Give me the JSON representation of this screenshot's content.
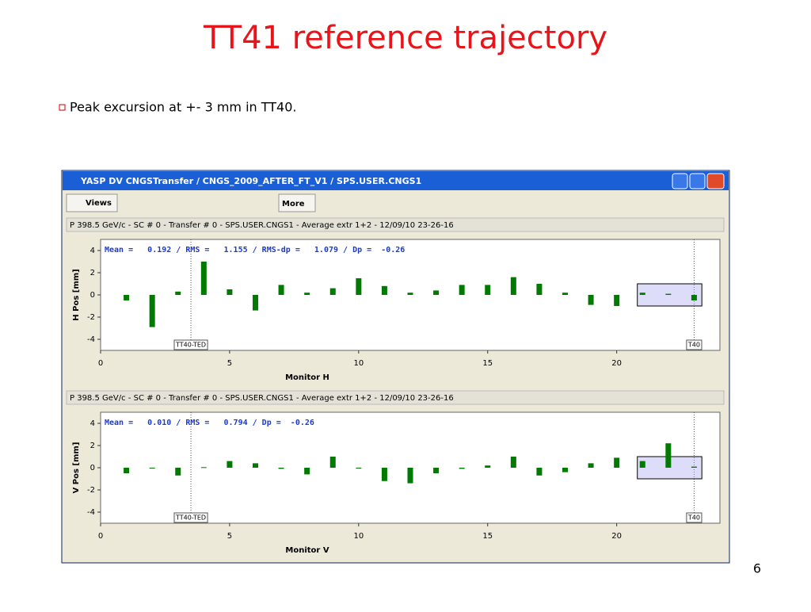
{
  "slide": {
    "title": "TT41 reference trajectory",
    "bullet": "Peak excursion at +- 3 mm in TT40.",
    "page_number": "6"
  },
  "window": {
    "title": "YASP DV CNGSTransfer / CNGS_2009_AFTER_FT_V1 / SPS.USER.CNGS1",
    "toolbar": [
      "Views",
      "More"
    ]
  },
  "chart_data": [
    {
      "type": "bar",
      "subtitle": "P 398.5 GeV/c - SC # 0 - Transfer # 0 - SPS.USER.CNGS1 -  Average extr 1+2 - 12/09/10 23-26-16",
      "annotation": "Mean =   0.192 / RMS =   1.155 / RMS-dp =   1.079 / Dp =  -0.26",
      "x_label": "Monitor H",
      "y_label": "H Pos [mm]",
      "x": [
        1,
        2,
        3,
        4,
        5,
        6,
        7,
        8,
        9,
        10,
        11,
        12,
        13,
        14,
        15,
        16,
        17,
        18,
        19,
        20,
        21,
        22,
        23
      ],
      "values": [
        -0.5,
        -2.9,
        0.3,
        3.0,
        0.5,
        -1.4,
        0.9,
        0.2,
        0.6,
        1.5,
        0.8,
        0.2,
        0.4,
        0.9,
        0.9,
        1.6,
        1.0,
        0.2,
        -0.9,
        -1.0,
        0.2,
        0.1,
        -0.5
      ],
      "color": "#007a00",
      "xlim": [
        0,
        24
      ],
      "ylim": [
        -5,
        5
      ],
      "xticks": [
        0,
        5,
        10,
        15,
        20
      ],
      "yticks": [
        -4,
        -2,
        0,
        2,
        4
      ],
      "markers": [
        {
          "x": 3.5,
          "label": "TT40-TED"
        },
        {
          "x": 23,
          "label": "T40"
        }
      ],
      "selection": {
        "xlim": [
          20.8,
          23.3
        ],
        "ylim": [
          -1,
          1
        ]
      }
    },
    {
      "type": "bar",
      "subtitle": "P 398.5 GeV/c - SC # 0 - Transfer # 0 - SPS.USER.CNGS1 -  Average extr 1+2 - 12/09/10 23-26-16",
      "annotation": "Mean =   0.010 / RMS =   0.794 / Dp =  -0.26",
      "x_label": "Monitor V",
      "y_label": "V Pos [mm]",
      "x": [
        1,
        2,
        3,
        4,
        5,
        6,
        7,
        8,
        9,
        10,
        11,
        12,
        13,
        14,
        15,
        16,
        17,
        18,
        19,
        20,
        21,
        22,
        23
      ],
      "values": [
        -0.5,
        -0.05,
        -0.7,
        0.05,
        0.6,
        0.4,
        -0.1,
        -0.6,
        1.0,
        -0.05,
        -1.2,
        -1.4,
        -0.5,
        -0.1,
        0.2,
        1.0,
        -0.7,
        -0.4,
        0.4,
        0.9,
        0.6,
        2.2,
        0.1
      ],
      "color": "#007a00",
      "xlim": [
        0,
        24
      ],
      "ylim": [
        -5,
        5
      ],
      "xticks": [
        0,
        5,
        10,
        15,
        20
      ],
      "yticks": [
        -4,
        -2,
        0,
        2,
        4
      ],
      "markers": [
        {
          "x": 3.5,
          "label": "TT40-TED"
        },
        {
          "x": 23,
          "label": "T40"
        }
      ],
      "selection": {
        "xlim": [
          20.8,
          23.3
        ],
        "ylim": [
          -1,
          1
        ]
      }
    }
  ]
}
